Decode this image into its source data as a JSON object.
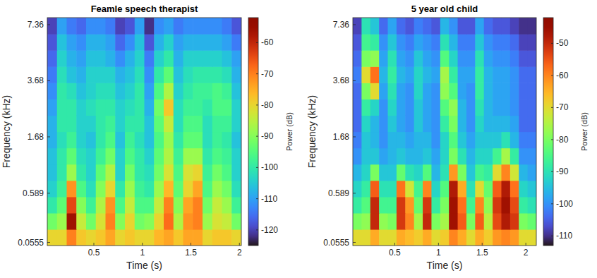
{
  "chart_data": [
    {
      "type": "heatmap",
      "title": "Feamle speech therapist",
      "x_label": "Time (s)",
      "y_label": "Frequency (kHz)",
      "x": [
        0.07,
        0.17,
        0.27,
        0.37,
        0.47,
        0.57,
        0.67,
        0.77,
        0.87,
        0.97,
        1.07,
        1.17,
        1.27,
        1.37,
        1.47,
        1.57,
        1.67,
        1.77,
        1.87,
        1.97
      ],
      "y": [
        0.097,
        0.252,
        0.436,
        0.656,
        0.919,
        1.232,
        1.607,
        2.052,
        2.587,
        3.222,
        3.983,
        4.889,
        5.973,
        7.26
      ],
      "z": [
        [
          -80,
          -80,
          -70,
          -78,
          -80,
          -78,
          -74,
          -80,
          -78,
          -80,
          -80,
          -76,
          -74,
          -78,
          -74,
          -74,
          -80,
          -78,
          -78,
          -80
        ],
        [
          -92,
          -88,
          -56,
          -84,
          -92,
          -82,
          -70,
          -90,
          -80,
          -92,
          -90,
          -80,
          -68,
          -86,
          -72,
          -70,
          -88,
          -82,
          -84,
          -92
        ],
        [
          -100,
          -94,
          -64,
          -90,
          -98,
          -86,
          -72,
          -96,
          -84,
          -96,
          -96,
          -84,
          -70,
          -90,
          -74,
          -70,
          -92,
          -84,
          -88,
          -98
        ],
        [
          -104,
          -98,
          -72,
          -96,
          -102,
          -90,
          -80,
          -100,
          -88,
          -98,
          -100,
          -88,
          -76,
          -94,
          -80,
          -74,
          -96,
          -88,
          -92,
          -102
        ],
        [
          -106,
          -100,
          -88,
          -100,
          -104,
          -94,
          -86,
          -104,
          -92,
          -100,
          -102,
          -92,
          -82,
          -96,
          -82,
          -80,
          -98,
          -92,
          -96,
          -104
        ],
        [
          -106,
          -100,
          -94,
          -102,
          -104,
          -98,
          -92,
          -104,
          -96,
          -100,
          -104,
          -94,
          -86,
          -98,
          -88,
          -88,
          -100,
          -96,
          -98,
          -104
        ],
        [
          -108,
          -102,
          -98,
          -104,
          -106,
          -100,
          -96,
          -106,
          -98,
          -102,
          -106,
          -96,
          -88,
          -100,
          -94,
          -94,
          -102,
          -98,
          -100,
          -106
        ],
        [
          -108,
          -100,
          -100,
          -104,
          -104,
          -100,
          -98,
          -104,
          -100,
          -100,
          -106,
          -94,
          -84,
          -102,
          -96,
          -96,
          -102,
          -98,
          -98,
          -104
        ],
        [
          -110,
          -100,
          -100,
          -104,
          -102,
          -100,
          -100,
          -104,
          -102,
          -100,
          -108,
          -92,
          -78,
          -102,
          -98,
          -98,
          -100,
          -96,
          -96,
          -104
        ],
        [
          -112,
          -100,
          -102,
          -106,
          -104,
          -102,
          -102,
          -106,
          -104,
          -100,
          -110,
          -96,
          -86,
          -104,
          -100,
          -98,
          -98,
          -96,
          -98,
          -106
        ],
        [
          -114,
          -102,
          -106,
          -108,
          -104,
          -104,
          -104,
          -108,
          -106,
          -102,
          -112,
          -100,
          -94,
          -106,
          -102,
          -100,
          -100,
          -100,
          -102,
          -108
        ],
        [
          -116,
          -104,
          -108,
          -110,
          -106,
          -106,
          -108,
          -112,
          -108,
          -104,
          -114,
          -104,
          -100,
          -108,
          -104,
          -104,
          -104,
          -104,
          -106,
          -110
        ],
        [
          -118,
          -106,
          -110,
          -112,
          -108,
          -108,
          -110,
          -116,
          -112,
          -106,
          -118,
          -108,
          -104,
          -110,
          -108,
          -108,
          -108,
          -108,
          -110,
          -114
        ],
        [
          -120,
          -110,
          -114,
          -116,
          -112,
          -112,
          -114,
          -120,
          -118,
          -110,
          -122,
          -112,
          -110,
          -114,
          -112,
          -112,
          -112,
          -112,
          -114,
          -118
        ]
      ],
      "xlim": [
        0.02,
        2.02
      ],
      "ylim": [
        0.03,
        8
      ],
      "xticks": [
        0.5,
        1,
        1.5,
        2
      ],
      "yticks": [
        0.0555,
        0.589,
        1.68,
        3.68,
        7.36
      ],
      "colorbar": {
        "label": "Power (dB)",
        "range": [
          -125,
          -52
        ],
        "ticks": [
          -60,
          -70,
          -80,
          -90,
          -100,
          -110,
          -120
        ]
      }
    },
    {
      "type": "heatmap",
      "title": "5 year old child",
      "x_label": "Time (s)",
      "y_label": "Frequency (kHz)",
      "x": [
        0.07,
        0.17,
        0.27,
        0.37,
        0.47,
        0.57,
        0.67,
        0.77,
        0.87,
        0.97,
        1.07,
        1.17,
        1.27,
        1.37,
        1.47,
        1.57,
        1.67,
        1.77,
        1.87,
        1.97,
        2.07
      ],
      "y": [
        0.097,
        0.252,
        0.436,
        0.656,
        0.919,
        1.232,
        1.607,
        2.052,
        2.587,
        3.222,
        3.983,
        4.889,
        5.973,
        7.26
      ],
      "z": [
        [
          -70,
          -70,
          -64,
          -70,
          -70,
          -64,
          -66,
          -68,
          -64,
          -70,
          -68,
          -60,
          -64,
          -70,
          -64,
          -68,
          -62,
          -60,
          -62,
          -70,
          -70
        ],
        [
          -80,
          -78,
          -50,
          -78,
          -80,
          -52,
          -60,
          -76,
          -50,
          -80,
          -76,
          -46,
          -56,
          -80,
          -56,
          -74,
          -54,
          -48,
          -52,
          -80,
          -82
        ],
        [
          -88,
          -84,
          -50,
          -86,
          -86,
          -52,
          -62,
          -82,
          -52,
          -88,
          -80,
          -46,
          -58,
          -86,
          -60,
          -78,
          -52,
          -46,
          -54,
          -88,
          -90
        ],
        [
          -92,
          -88,
          -56,
          -90,
          -90,
          -58,
          -72,
          -86,
          -60,
          -92,
          -84,
          -48,
          -64,
          -90,
          -70,
          -82,
          -56,
          -48,
          -58,
          -92,
          -94
        ],
        [
          -96,
          -92,
          -80,
          -94,
          -94,
          -82,
          -90,
          -92,
          -84,
          -96,
          -90,
          -62,
          -80,
          -94,
          -86,
          -88,
          -70,
          -60,
          -72,
          -96,
          -98
        ],
        [
          -100,
          -94,
          -94,
          -98,
          -96,
          -94,
          -96,
          -96,
          -94,
          -98,
          -92,
          -80,
          -90,
          -96,
          -92,
          -92,
          -86,
          -76,
          -88,
          -100,
          -100
        ],
        [
          -102,
          -94,
          -96,
          -100,
          -96,
          -96,
          -98,
          -96,
          -96,
          -100,
          -92,
          -84,
          -94,
          -98,
          -94,
          -94,
          -94,
          -90,
          -96,
          -102,
          -102
        ],
        [
          -104,
          -92,
          -96,
          -100,
          -94,
          -98,
          -100,
          -94,
          -98,
          -100,
          -88,
          -80,
          -96,
          -100,
          -92,
          -96,
          -96,
          -96,
          -98,
          -104,
          -104
        ],
        [
          -104,
          -88,
          -92,
          -100,
          -92,
          -98,
          -100,
          -94,
          -98,
          -100,
          -84,
          -78,
          -96,
          -100,
          -90,
          -96,
          -98,
          -98,
          -100,
          -104,
          -104
        ],
        [
          -104,
          -80,
          -70,
          -98,
          -90,
          -98,
          -100,
          -92,
          -98,
          -100,
          -78,
          -84,
          -98,
          -100,
          -88,
          -96,
          -98,
          -98,
          -100,
          -104,
          -104
        ],
        [
          -102,
          -70,
          -58,
          -96,
          -88,
          -96,
          -98,
          -92,
          -96,
          -98,
          -76,
          -88,
          -98,
          -98,
          -88,
          -96,
          -98,
          -98,
          -100,
          -104,
          -104
        ],
        [
          -104,
          -80,
          -78,
          -98,
          -90,
          -98,
          -100,
          -94,
          -98,
          -100,
          -84,
          -92,
          -100,
          -100,
          -90,
          -98,
          -100,
          -100,
          -102,
          -106,
          -106
        ],
        [
          -106,
          -86,
          -88,
          -100,
          -94,
          -100,
          -102,
          -98,
          -100,
          -102,
          -90,
          -96,
          -102,
          -102,
          -94,
          -100,
          -102,
          -102,
          -104,
          -108,
          -108
        ],
        [
          -108,
          -90,
          -94,
          -104,
          -98,
          -104,
          -106,
          -102,
          -104,
          -106,
          -96,
          -100,
          -106,
          -106,
          -98,
          -104,
          -106,
          -106,
          -108,
          -110,
          -110
        ]
      ],
      "xlim": [
        0.02,
        2.12
      ],
      "ylim": [
        0.03,
        8
      ],
      "xticks": [
        0.5,
        1,
        1.5,
        2
      ],
      "yticks": [
        0.0555,
        0.589,
        1.68,
        3.68,
        7.36
      ],
      "colorbar": {
        "label": "Power (dB)",
        "range": [
          -113,
          -42
        ],
        "ticks": [
          -50,
          -60,
          -70,
          -80,
          -90,
          -100,
          -110
        ]
      }
    }
  ]
}
